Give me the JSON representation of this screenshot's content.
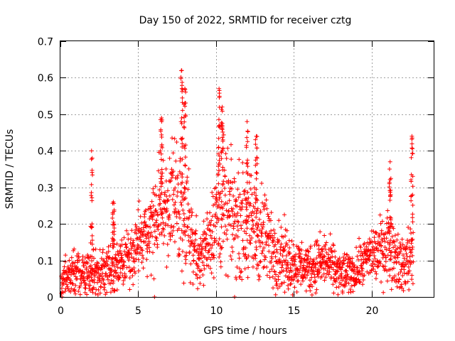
{
  "chart_data": {
    "type": "scatter",
    "title": "Day 150 of 2022, SRMTID for receiver cztg",
    "xlabel": "GPS time / hours",
    "ylabel": "SRMTID / TECUs",
    "xlim": [
      0,
      24
    ],
    "ylim": [
      0,
      0.7
    ],
    "xticks": [
      0,
      5,
      10,
      15,
      20
    ],
    "yticks": [
      0,
      0.1,
      0.2,
      0.3,
      0.4,
      0.5,
      0.6,
      0.7
    ],
    "xtick_labels": [
      "0",
      "5",
      "10",
      "15",
      "20"
    ],
    "ytick_labels": [
      "0",
      "0.1",
      "0.2",
      "0.3",
      "0.4",
      "0.5",
      "0.6",
      "0.7"
    ],
    "grid": true,
    "marker": "+",
    "color": "#ff0000",
    "points_note": "dense scatter of ~2000 points; x in hours, y in TECU",
    "envelope": {
      "x": [
        0,
        1,
        2,
        3,
        4,
        5,
        6,
        6.5,
        7,
        7.5,
        8,
        8.5,
        9,
        10,
        10.5,
        11,
        12,
        12.5,
        13,
        14,
        15,
        16,
        17,
        18,
        19,
        20,
        20.5,
        21,
        21.5,
        22,
        22.5
      ],
      "median": [
        0.05,
        0.06,
        0.07,
        0.07,
        0.1,
        0.14,
        0.2,
        0.24,
        0.25,
        0.26,
        0.25,
        0.15,
        0.1,
        0.22,
        0.24,
        0.22,
        0.2,
        0.18,
        0.17,
        0.12,
        0.09,
        0.08,
        0.1,
        0.06,
        0.07,
        0.12,
        0.12,
        0.15,
        0.12,
        0.08,
        0.12
      ],
      "spread": [
        0.03,
        0.04,
        0.05,
        0.05,
        0.05,
        0.06,
        0.08,
        0.1,
        0.1,
        0.12,
        0.12,
        0.08,
        0.05,
        0.1,
        0.12,
        0.1,
        0.1,
        0.1,
        0.09,
        0.07,
        0.05,
        0.05,
        0.05,
        0.04,
        0.04,
        0.05,
        0.06,
        0.07,
        0.06,
        0.05,
        0.07
      ]
    },
    "spikes": [
      {
        "x": 2.0,
        "y": 0.4
      },
      {
        "x": 3.4,
        "y": 0.26
      },
      {
        "x": 6.5,
        "y": 0.49
      },
      {
        "x": 7.8,
        "y": 0.62
      },
      {
        "x": 8.0,
        "y": 0.57
      },
      {
        "x": 10.2,
        "y": 0.57
      },
      {
        "x": 10.4,
        "y": 0.52
      },
      {
        "x": 12.0,
        "y": 0.48
      },
      {
        "x": 12.6,
        "y": 0.44
      },
      {
        "x": 21.2,
        "y": 0.37
      },
      {
        "x": 22.6,
        "y": 0.44
      }
    ]
  }
}
